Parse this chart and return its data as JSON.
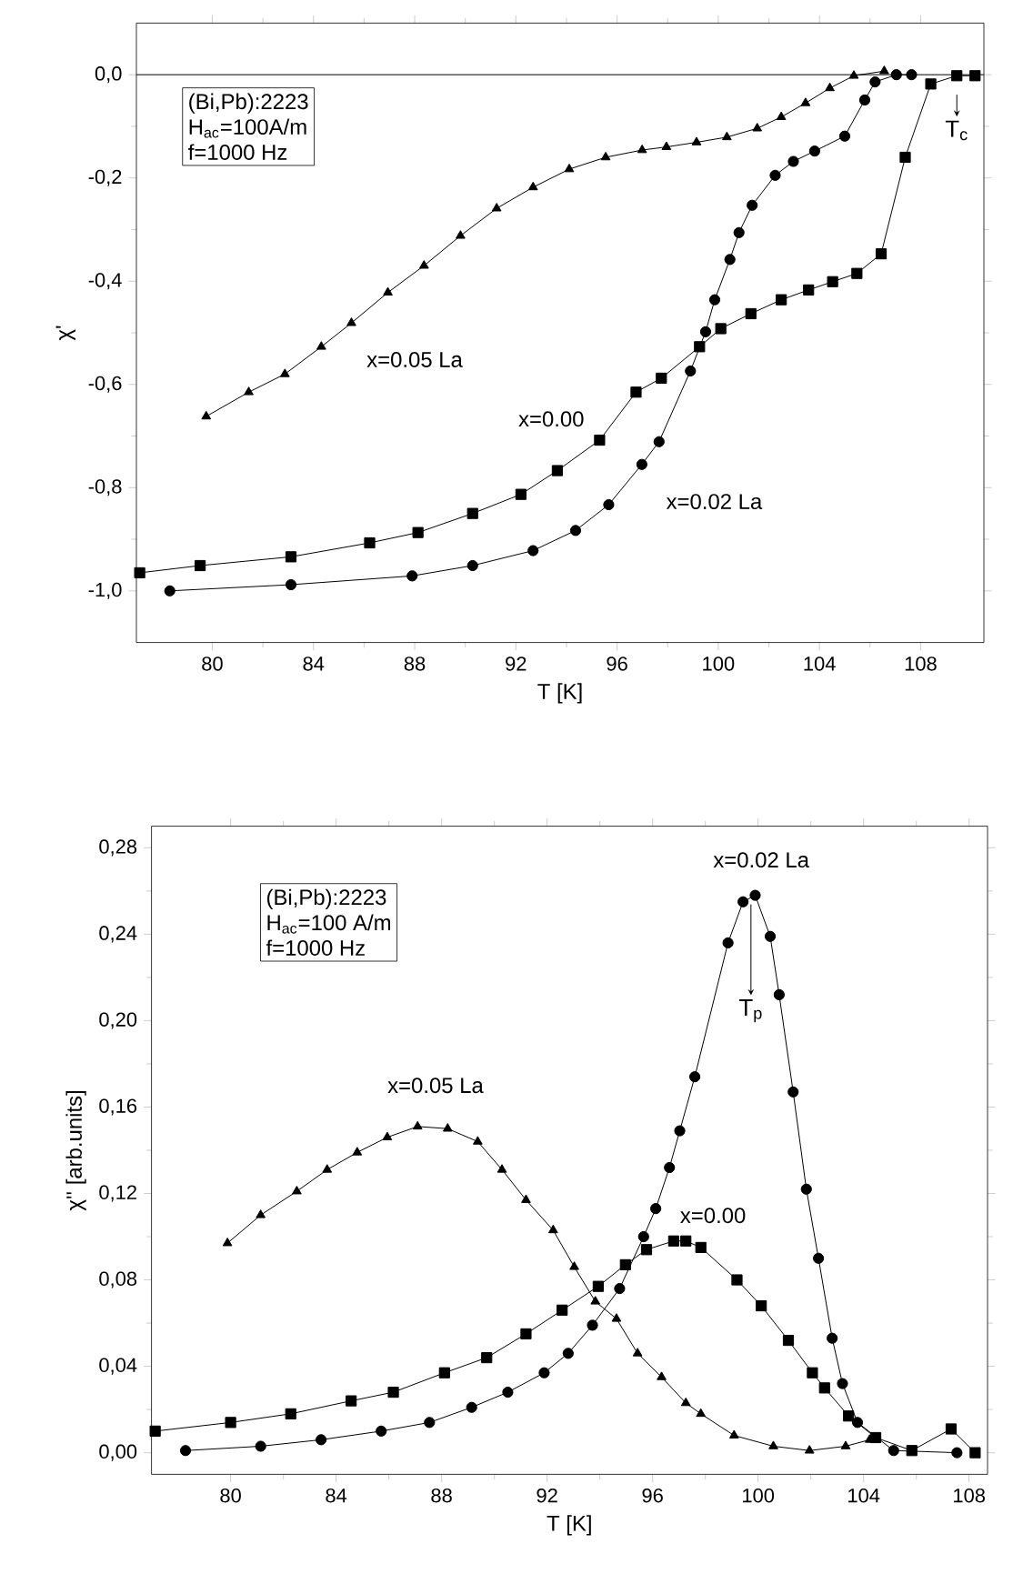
{
  "chart_data": [
    {
      "type": "line",
      "xlabel": "T [K]",
      "ylabel": "χ'",
      "xlim": [
        77,
        110.5
      ],
      "ylim": [
        -1.1,
        0.1
      ],
      "xticks": [
        80,
        84,
        88,
        92,
        96,
        100,
        104,
        108
      ],
      "yticks": [
        {
          "value": 0,
          "label": "0,0"
        },
        {
          "value": -0.2,
          "label": "-0,2"
        },
        {
          "value": -0.4,
          "label": "-0,4"
        },
        {
          "value": -0.6,
          "label": "-0,6"
        },
        {
          "value": -0.8,
          "label": "-0,8"
        },
        {
          "value": -1.0,
          "label": "-1,0"
        }
      ],
      "series": [
        {
          "name": "x=0.00",
          "color": "#000000",
          "marker": "square",
          "x": [
            77.13,
            79.52,
            83.11,
            86.22,
            88.13,
            90.29,
            92.2,
            93.64,
            95.31,
            96.75,
            97.75,
            99.26,
            100.1,
            101.29,
            102.49,
            103.57,
            104.52,
            105.48,
            106.44,
            107.39,
            108.4,
            109.43,
            110.15
          ],
          "values": [
            -0.965,
            -0.951,
            -0.934,
            -0.907,
            -0.887,
            -0.85,
            -0.813,
            -0.767,
            -0.708,
            -0.615,
            -0.588,
            -0.527,
            -0.492,
            -0.463,
            -0.436,
            -0.417,
            -0.401,
            -0.385,
            -0.347,
            -0.16,
            -0.018,
            -0.002,
            -0.002
          ]
        },
        {
          "name": "x=0.02 La",
          "color": "#000000",
          "marker": "circle",
          "x": [
            78.32,
            83.11,
            87.9,
            90.29,
            92.68,
            94.36,
            95.67,
            96.98,
            97.66,
            98.9,
            99.5,
            99.86,
            100.46,
            100.82,
            101.34,
            102.25,
            102.97,
            103.81,
            105.0,
            105.79,
            106.2,
            107.04,
            107.64
          ],
          "values": [
            -1.0,
            -0.988,
            -0.971,
            -0.951,
            -0.922,
            -0.883,
            -0.833,
            -0.755,
            -0.711,
            -0.574,
            -0.498,
            -0.436,
            -0.358,
            -0.306,
            -0.253,
            -0.195,
            -0.168,
            -0.148,
            -0.119,
            -0.049,
            -0.014,
            0.0,
            0.0
          ]
        },
        {
          "name": "x=0.05 La",
          "color": "#000000",
          "marker": "triangle",
          "x": [
            79.76,
            81.44,
            82.87,
            84.31,
            85.5,
            86.94,
            88.37,
            89.81,
            91.24,
            92.68,
            94.11,
            95.55,
            96.99,
            97.95,
            99.14,
            100.34,
            101.54,
            102.49,
            103.45,
            104.41,
            105.36,
            106.56
          ],
          "values": [
            -0.662,
            -0.615,
            -0.58,
            -0.527,
            -0.481,
            -0.422,
            -0.37,
            -0.312,
            -0.259,
            -0.218,
            -0.183,
            -0.16,
            -0.146,
            -0.14,
            -0.131,
            -0.121,
            -0.104,
            -0.082,
            -0.055,
            -0.026,
            -0.002,
            0.007
          ]
        }
      ],
      "ref_lines": [
        {
          "axis": "y",
          "value": 0,
          "color": "#000000"
        }
      ],
      "annotations": [
        "(Bi,Pb):2223",
        "H$_{ac}$=100A/m",
        "f=1000 Hz",
        {
          "text": "T$_{c}$",
          "x": 109.43,
          "y": 0.0
        }
      ]
    },
    {
      "type": "line",
      "xlabel": "T [K]",
      "ylabel": "χ'' [arb.units]",
      "xlim": [
        77,
        108.7
      ],
      "ylim": [
        -0.01,
        0.29
      ],
      "xticks": [
        80,
        84,
        88,
        92,
        96,
        100,
        104,
        108
      ],
      "yticks": [
        {
          "value": 0,
          "label": "0,00"
        },
        {
          "value": 0.04,
          "label": "0,04"
        },
        {
          "value": 0.08,
          "label": "0,08"
        },
        {
          "value": 0.12,
          "label": "0,12"
        },
        {
          "value": 0.16,
          "label": "0,16"
        },
        {
          "value": 0.2,
          "label": "0,20"
        },
        {
          "value": 0.24,
          "label": "0,24"
        },
        {
          "value": 0.28,
          "label": "0,28"
        }
      ],
      "series": [
        {
          "name": "x=0.00",
          "color": "#000000",
          "marker": "square",
          "x": [
            77.14,
            80.0,
            82.28,
            84.57,
            86.17,
            88.11,
            89.71,
            91.2,
            92.57,
            93.94,
            94.97,
            95.77,
            96.8,
            97.26,
            97.83,
            99.2,
            100.12,
            101.15,
            102.06,
            102.52,
            103.43,
            104.46,
            105.83,
            107.32,
            108.23
          ],
          "values": [
            0.01,
            0.014,
            0.018,
            0.024,
            0.028,
            0.037,
            0.044,
            0.055,
            0.066,
            0.077,
            0.087,
            0.094,
            0.098,
            0.098,
            0.095,
            0.08,
            0.068,
            0.052,
            0.037,
            0.03,
            0.017,
            0.007,
            0.001,
            0.011,
            0.0
          ]
        },
        {
          "name": "x=0.02 La",
          "color": "#000000",
          "marker": "circle",
          "x": [
            78.29,
            81.14,
            83.43,
            85.71,
            87.54,
            89.14,
            90.51,
            91.89,
            92.8,
            93.72,
            94.75,
            95.66,
            96.12,
            96.64,
            97.03,
            97.6,
            98.86,
            99.43,
            99.89,
            100.46,
            100.8,
            101.33,
            101.83,
            102.29,
            102.81,
            103.2,
            103.77,
            105.14,
            107.54
          ],
          "values": [
            0.001,
            0.003,
            0.006,
            0.01,
            0.014,
            0.021,
            0.028,
            0.037,
            0.046,
            0.059,
            0.076,
            0.1,
            0.113,
            0.132,
            0.149,
            0.174,
            0.236,
            0.255,
            0.258,
            0.239,
            0.212,
            0.167,
            0.122,
            0.09,
            0.053,
            0.032,
            0.014,
            0.001,
            0.0
          ]
        },
        {
          "name": "x=0.05 La",
          "color": "#000000",
          "marker": "triangle",
          "x": [
            79.88,
            81.14,
            82.51,
            83.66,
            84.8,
            85.94,
            87.09,
            88.23,
            89.37,
            90.29,
            91.2,
            92.23,
            93.03,
            93.83,
            94.63,
            95.43,
            96.34,
            97.26,
            97.83,
            99.09,
            100.58,
            101.95,
            103.32,
            104.23
          ],
          "values": [
            0.097,
            0.11,
            0.121,
            0.131,
            0.139,
            0.146,
            0.151,
            0.15,
            0.144,
            0.131,
            0.117,
            0.103,
            0.086,
            0.07,
            0.062,
            0.046,
            0.035,
            0.023,
            0.018,
            0.008,
            0.003,
            0.001,
            0.003,
            0.006
          ]
        }
      ],
      "annotations": [
        "(Bi,Pb):2223",
        "H$_{ac}$=100 A/m",
        "f=1000 Hz",
        {
          "text": "T$_{p}$",
          "x": 99.73,
          "y": 0.258
        }
      ]
    }
  ]
}
